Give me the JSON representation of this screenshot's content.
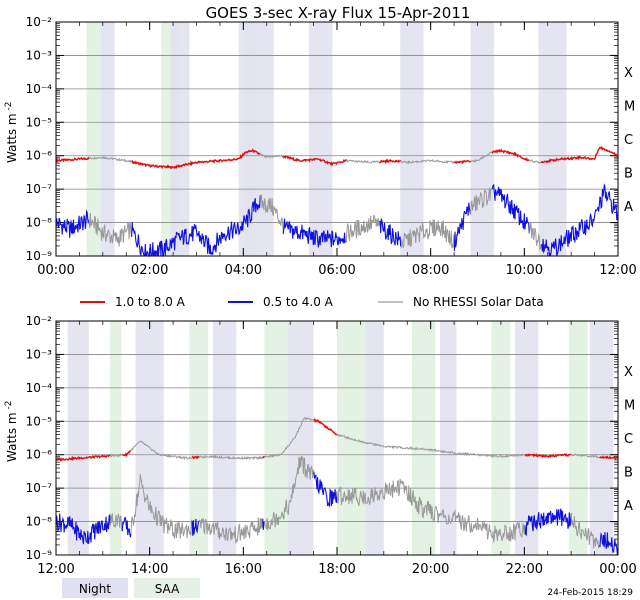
{
  "title": "GOES 3-sec X-ray Flux   15-Apr-2011",
  "ylabel": "Watts m",
  "ylabel_sup": "-2",
  "timestamp": "24-Feb-2015 18:29",
  "colors": {
    "long": "#e01010",
    "short": "#1010e0",
    "no_data": "#999999",
    "night": "#e0e0f0",
    "saa": "#e4f2e4",
    "grid": "#888888"
  },
  "legend": {
    "long": "1.0 to 8.0 A",
    "short": "0.5 to 4.0 A",
    "no_data": "No RHESSI Solar Data"
  },
  "bottom_legend": {
    "night": "Night",
    "saa": "SAA"
  },
  "flare_classes": [
    "X",
    "M",
    "C",
    "B",
    "A"
  ],
  "chart_data": [
    {
      "type": "line",
      "panel": "top",
      "x_range_hours": [
        0,
        12
      ],
      "x_ticks": [
        "00:00",
        "02:00",
        "04:00",
        "06:00",
        "08:00",
        "10:00",
        "12:00"
      ],
      "y_scale": "log",
      "ylim": [
        1e-09,
        0.01
      ],
      "y_tick_labels": [
        "10⁻²",
        "10⁻³",
        "10⁻⁴",
        "10⁻⁵",
        "10⁻⁶",
        "10⁻⁷",
        "10⁻⁸",
        "10⁻⁹"
      ],
      "night": [
        [
          0.95,
          1.25
        ],
        [
          2.45,
          2.85
        ],
        [
          3.9,
          4.65
        ],
        [
          5.4,
          5.9
        ],
        [
          7.35,
          7.85
        ],
        [
          8.85,
          9.35
        ],
        [
          10.3,
          10.9
        ]
      ],
      "saa": [
        [
          0.65,
          0.95
        ],
        [
          2.25,
          2.6
        ],
        [
          4.05,
          4.25
        ]
      ],
      "no_data": [
        [
          0.7,
          1.6
        ],
        [
          4.35,
          4.85
        ],
        [
          6.2,
          6.9
        ],
        [
          7.35,
          8.5
        ],
        [
          8.85,
          9.3
        ],
        [
          10.1,
          10.35
        ]
      ],
      "series": [
        {
          "name": "1.0 to 8.0 A",
          "log_x": [
            0,
            0.5,
            1.0,
            1.5,
            2.0,
            2.5,
            3.0,
            3.5,
            3.9,
            4.05,
            4.2,
            4.5,
            4.8,
            5.2,
            5.6,
            5.9,
            6.2,
            6.7,
            7.2,
            7.5,
            8.0,
            8.5,
            9.0,
            9.3,
            9.5,
            9.8,
            10.0,
            10.3,
            10.8,
            11.2,
            11.5,
            11.6,
            11.8,
            12.0
          ],
          "log_y": [
            -6.15,
            -6.1,
            -6.05,
            -6.15,
            -6.3,
            -6.35,
            -6.2,
            -6.15,
            -6.1,
            -5.9,
            -5.85,
            -6.05,
            -6.0,
            -6.15,
            -6.1,
            -6.25,
            -6.15,
            -6.2,
            -6.15,
            -6.2,
            -6.15,
            -6.2,
            -6.15,
            -5.9,
            -5.85,
            -5.95,
            -6.1,
            -6.2,
            -6.1,
            -6.05,
            -6.1,
            -5.75,
            -5.85,
            -6.0
          ]
        },
        {
          "name": "0.5 to 4.0 A",
          "log_x": [
            0,
            0.3,
            0.7,
            1.0,
            1.3,
            1.6,
            1.9,
            2.3,
            2.6,
            3.0,
            3.3,
            3.6,
            3.9,
            4.1,
            4.3,
            4.6,
            4.9,
            5.2,
            5.6,
            6.0,
            6.4,
            6.8,
            7.1,
            7.4,
            7.8,
            8.2,
            8.5,
            8.8,
            9.1,
            9.4,
            9.7,
            10.0,
            10.3,
            10.6,
            10.9,
            11.2,
            11.5,
            11.7,
            11.9,
            12.0
          ],
          "log_y": [
            -8.0,
            -8.2,
            -7.9,
            -8.3,
            -8.5,
            -8.2,
            -8.9,
            -8.8,
            -8.5,
            -8.3,
            -8.8,
            -8.3,
            -8.2,
            -7.9,
            -7.4,
            -7.5,
            -8.2,
            -8.3,
            -8.5,
            -8.5,
            -8.2,
            -8.0,
            -8.3,
            -8.6,
            -8.3,
            -8.1,
            -8.6,
            -7.6,
            -7.3,
            -7.1,
            -7.5,
            -8.0,
            -8.5,
            -8.8,
            -8.5,
            -8.2,
            -7.9,
            -7.1,
            -7.5,
            -7.8
          ]
        }
      ]
    },
    {
      "type": "line",
      "panel": "bottom",
      "x_range_hours": [
        12,
        24
      ],
      "x_ticks": [
        "12:00",
        "14:00",
        "16:00",
        "18:00",
        "20:00",
        "22:00",
        "00:00"
      ],
      "y_scale": "log",
      "ylim": [
        1e-09,
        0.01
      ],
      "y_tick_labels": [
        "10⁻²",
        "10⁻³",
        "10⁻⁴",
        "10⁻⁵",
        "10⁻⁶",
        "10⁻⁷",
        "10⁻⁸",
        "10⁻⁹"
      ],
      "night": [
        [
          12.25,
          12.7
        ],
        [
          13.7,
          14.3
        ],
        [
          15.35,
          15.85
        ],
        [
          16.95,
          17.5
        ],
        [
          18.6,
          19.0
        ],
        [
          20.2,
          20.55
        ],
        [
          21.8,
          22.3
        ],
        [
          23.4,
          23.9
        ]
      ],
      "saa": [
        [
          13.15,
          13.4
        ],
        [
          14.85,
          15.25
        ],
        [
          16.45,
          16.95
        ],
        [
          18.0,
          18.6
        ],
        [
          19.6,
          20.1
        ],
        [
          21.3,
          21.7
        ],
        [
          22.95,
          23.35
        ]
      ],
      "no_data": [
        [
          13.15,
          13.4
        ],
        [
          13.6,
          14.9
        ],
        [
          15.05,
          16.4
        ],
        [
          16.45,
          17.5
        ],
        [
          18.0,
          22.0
        ],
        [
          23.0,
          23.6
        ]
      ],
      "series": [
        {
          "name": "1.0 to 8.0 A",
          "log_x": [
            12.0,
            12.5,
            13.0,
            13.5,
            13.8,
            14.2,
            14.8,
            15.3,
            15.8,
            16.3,
            16.8,
            17.1,
            17.3,
            17.6,
            18.0,
            18.5,
            19.0,
            19.5,
            20.0,
            20.5,
            21.0,
            21.5,
            22.0,
            22.5,
            23.0,
            23.5,
            24.0
          ],
          "log_y": [
            -6.15,
            -6.1,
            -6.05,
            -6.0,
            -5.6,
            -6.0,
            -6.1,
            -6.05,
            -6.1,
            -6.1,
            -6.0,
            -5.5,
            -4.9,
            -5.0,
            -5.4,
            -5.6,
            -5.75,
            -5.8,
            -5.85,
            -5.95,
            -6.0,
            -6.05,
            -6.0,
            -6.05,
            -6.0,
            -6.05,
            -6.1
          ]
        },
        {
          "name": "0.5 to 4.0 A",
          "log_x": [
            12.0,
            12.3,
            12.6,
            13.0,
            13.3,
            13.6,
            13.8,
            14.0,
            14.3,
            14.6,
            14.9,
            15.2,
            15.5,
            15.8,
            16.1,
            16.4,
            16.7,
            17.0,
            17.2,
            17.4,
            17.6,
            17.8,
            18.2,
            18.6,
            19.0,
            19.4,
            19.8,
            20.2,
            20.6,
            21.0,
            21.4,
            21.8,
            22.2,
            22.6,
            23.0,
            23.4,
            23.8,
            24.0
          ],
          "log_y": [
            -8.0,
            -8.1,
            -8.5,
            -8.1,
            -7.9,
            -8.3,
            -6.8,
            -7.6,
            -8.1,
            -8.3,
            -8.2,
            -8.1,
            -8.3,
            -8.4,
            -8.3,
            -8.1,
            -7.9,
            -7.5,
            -6.2,
            -6.5,
            -6.9,
            -7.3,
            -7.2,
            -7.3,
            -7.1,
            -6.95,
            -7.6,
            -7.8,
            -8.0,
            -8.1,
            -8.4,
            -8.3,
            -8.0,
            -7.85,
            -8.0,
            -8.5,
            -8.6,
            -8.8
          ]
        }
      ]
    }
  ]
}
